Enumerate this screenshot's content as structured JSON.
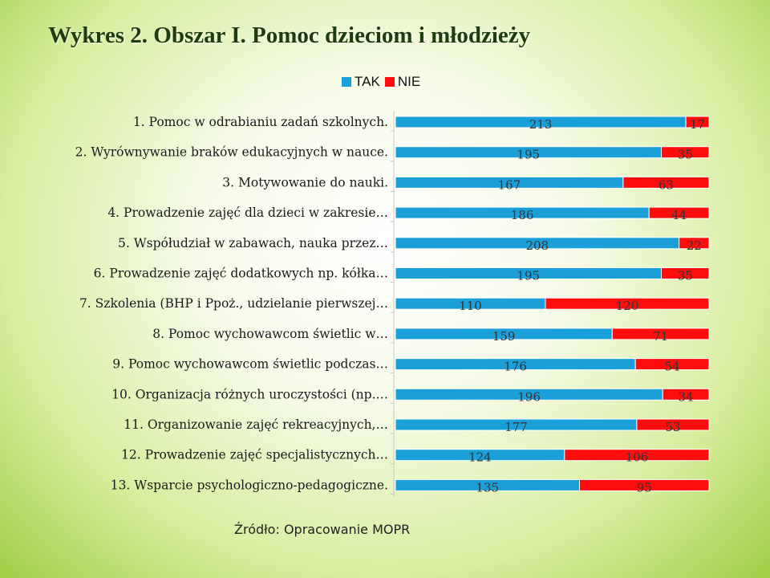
{
  "title": "Wykres 2. Obszar I. Pomoc dzieciom i młodzieży",
  "source": "Źródło: Opracowanie MOPR",
  "colors": {
    "tak": "#1b9fd9",
    "nie": "#ff0d0d",
    "axis": "#c8c8c8"
  },
  "chart_data": {
    "type": "bar",
    "orientation": "horizontal",
    "stacked": "100%",
    "title": "Wykres 2. Obszar I. Pomoc dzieciom i młodzieży",
    "legend": "top",
    "grid": false,
    "categories": [
      "1. Pomoc w odrabianiu zadań szkolnych.",
      "2. Wyrównywanie braków edukacyjnych w nauce.",
      "3. Motywowanie do nauki.",
      "4. Prowadzenie zajęć dla dzieci w zakresie…",
      "5. Współudział w zabawach, nauka przez…",
      "6. Prowadzenie zajęć dodatkowych np. kółka…",
      "7. Szkolenia (BHP i Ppoż., udzielanie pierwszej…",
      "8. Pomoc wychowawcom świetlic w…",
      "9. Pomoc wychowawcom świetlic podczas…",
      "10. Organizacja różnych uroczystości (np.…",
      "11. Organizowanie zajęć rekreacyjnych,…",
      "12. Prowadzenie zajęć specjalistycznych…",
      "13. Wsparcie psychologiczno-pedagogiczne."
    ],
    "series": [
      {
        "name": "TAK",
        "color": "#1b9fd9",
        "values": [
          213,
          195,
          167,
          186,
          208,
          195,
          110,
          159,
          176,
          196,
          177,
          124,
          135
        ]
      },
      {
        "name": "NIE",
        "color": "#ff0d0d",
        "values": [
          17,
          35,
          63,
          44,
          22,
          35,
          120,
          71,
          54,
          34,
          53,
          106,
          95
        ]
      }
    ]
  }
}
